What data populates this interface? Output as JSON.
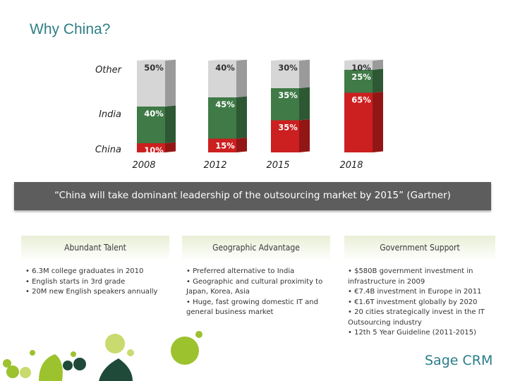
{
  "title": "Why China?",
  "chart_data": {
    "type": "bar",
    "stacked": true,
    "categories": [
      "2008",
      "2012",
      "2015",
      "2018"
    ],
    "series": [
      {
        "name": "China",
        "values": [
          10,
          15,
          35,
          65
        ],
        "labels": [
          "10%",
          "15%",
          "35%",
          "65%"
        ],
        "color": "#cc1f1f"
      },
      {
        "name": "India",
        "values": [
          40,
          45,
          35,
          25
        ],
        "labels": [
          "40%",
          "45%",
          "35%",
          "25%"
        ],
        "color": "#3f7a47"
      },
      {
        "name": "Other",
        "values": [
          50,
          40,
          30,
          10
        ],
        "labels": [
          "50%",
          "40%",
          "30%",
          "10%"
        ],
        "color": "#d6d6d6"
      }
    ],
    "ylim": [
      0,
      100
    ],
    "legend_position": "left"
  },
  "quote": "“China will take dominant leadership of the outsourcing market by 2015” (Gartner)",
  "columns": [
    {
      "heading": "Abundant Talent",
      "lines": [
        "• 6.3M college graduates in 2010",
        "• English starts in 3rd grade",
        "• 20M new English speakers annually"
      ]
    },
    {
      "heading": "Geographic Advantage",
      "lines": [
        "• Preferred alternative to India",
        "• Geographic and cultural proximity to",
        "Japan, Korea, Asia",
        "• Huge, fast growing domestic IT and",
        "general business market"
      ]
    },
    {
      "heading": "Government Support",
      "lines": [
        "• $580B government investment in",
        "infrastructure in 2009",
        "• €7.4B investment in Europe in 2011",
        "• €1.6T investment globally by 2020",
        "• 20 cities strategically invest in the IT",
        "Outsourcing industry",
        "• 12th 5 Year Guideline (2011-2015)"
      ]
    }
  ],
  "logo_text": "Sage CRM",
  "colors": {
    "title": "#2f7f86",
    "quote_bar": "#5d5d5d",
    "china": "#cc1f1f",
    "india": "#3f7a47",
    "other": "#d6d6d6",
    "deco_green": "#9cc22e",
    "deco_dark": "#1f4a3a"
  }
}
